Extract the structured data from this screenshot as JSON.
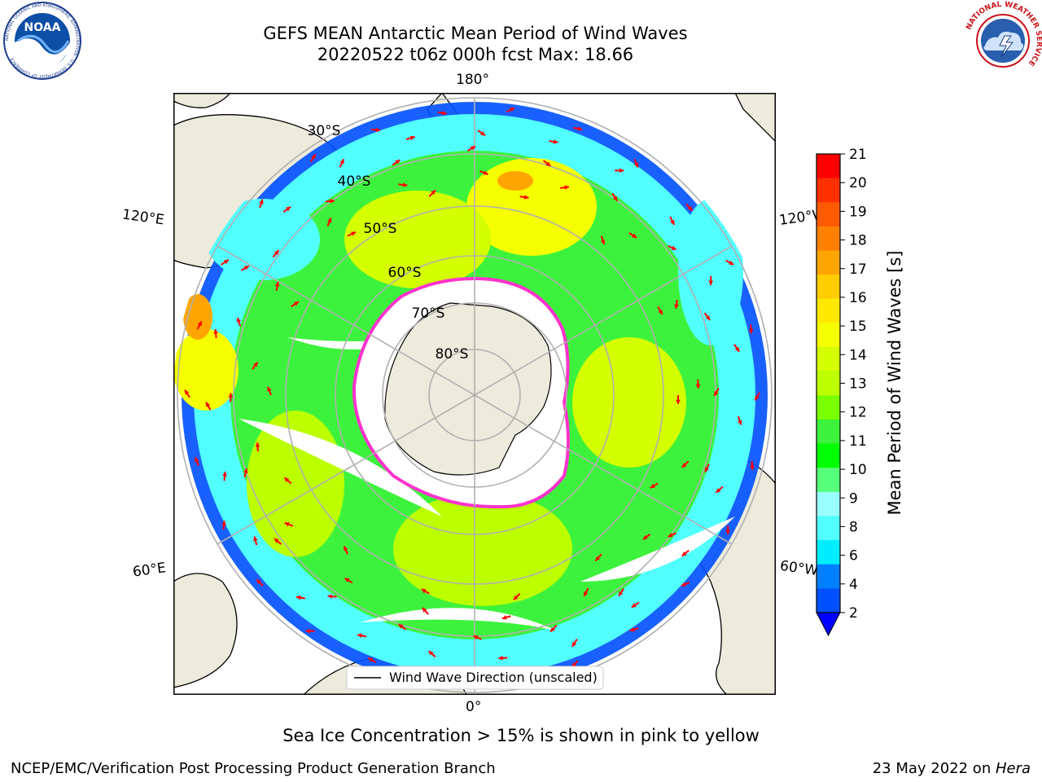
{
  "header": {
    "title_line1": "GEFS MEAN Antarctic Mean Period of Wind Waves",
    "title_line2": "20220522 t06z 000h fcst   Max: 18.66"
  },
  "logos": {
    "left": {
      "icon": "noaa-logo-icon",
      "text": "NOAA",
      "ring_text": "NATIONAL OCEANIC AND ATMOSPHERIC ADMINISTRATION · U.S. DEPARTMENT OF COMMERCE"
    },
    "right": {
      "icon": "nws-logo-icon",
      "ring_text": "NATIONAL WEATHER SERVICE"
    }
  },
  "map": {
    "latitude_labels": [
      "30°S",
      "40°S",
      "50°S",
      "60°S",
      "70°S",
      "80°S"
    ],
    "longitude_labels": {
      "top": "180°",
      "upper_left": "120°E",
      "upper_right": "120°W",
      "lower_left": "60°E",
      "lower_right": "60°W",
      "bottom": "0°"
    },
    "legend": {
      "label": "Wind Wave Direction (unscaled)",
      "arrow_color": "#ff0000"
    },
    "colors": {
      "land": "#ecebdc",
      "ocean_no_data": "#ffffff",
      "gridline": "#b0b0b0",
      "sea_ice": "#ff33cc"
    }
  },
  "colorbar": {
    "label": "Mean Period of Wind Waves [s]",
    "ticks": [
      "21",
      "20",
      "19",
      "18",
      "17",
      "16",
      "15",
      "14",
      "13",
      "12",
      "11",
      "10",
      "9",
      "8",
      "6",
      "4",
      "2"
    ],
    "colors_top_to_bottom": [
      "#ff0000",
      "#ff3000",
      "#ff5a00",
      "#ff8000",
      "#ffa500",
      "#ffcd00",
      "#ffe900",
      "#f5ff00",
      "#d3ff00",
      "#bbff00",
      "#7aff00",
      "#3df23d",
      "#00ff00",
      "#57ff7a",
      "#99ffff",
      "#52ffff",
      "#00ecff",
      "#0080ff",
      "#0050ff"
    ],
    "under_color": "#0000ff"
  },
  "footer": {
    "sea_ice_note": "Sea Ice Concentration > 15% is shown in pink to yellow",
    "credit": "NCEP/EMC/Verification Post Processing Product Generation Branch",
    "date": "23 May 2022 on ",
    "machine": "Hera"
  }
}
